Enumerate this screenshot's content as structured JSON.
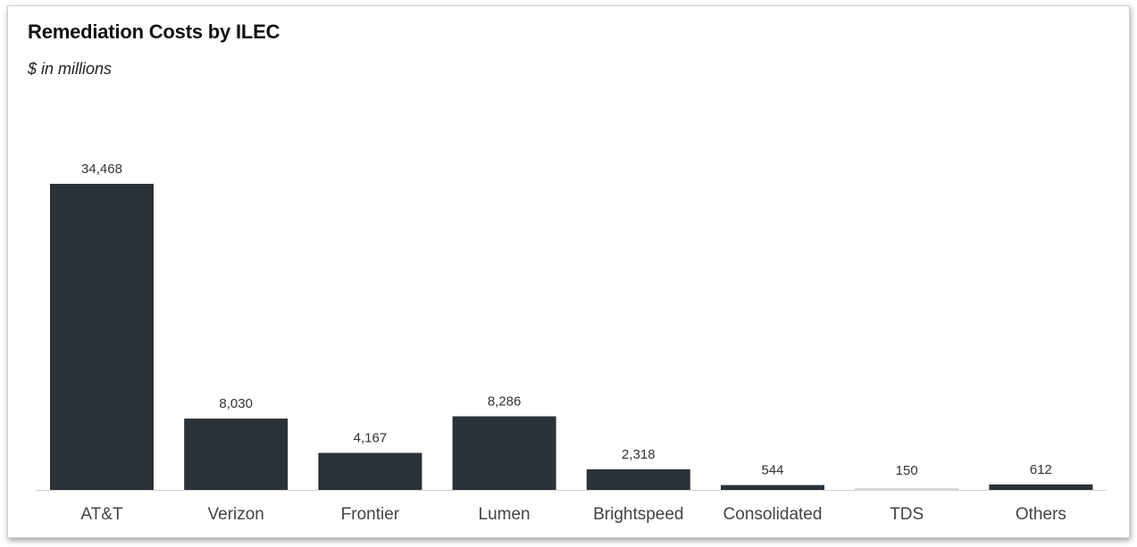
{
  "chart_data": {
    "type": "bar",
    "title": "Remediation Costs by ILEC",
    "subtitle": "$ in millions",
    "xlabel": "",
    "ylabel": "",
    "categories": [
      "AT&T",
      "Verizon",
      "Frontier",
      "Lumen",
      "Brightspeed",
      "Consolidated",
      "TDS",
      "Others"
    ],
    "values": [
      34468,
      8030,
      4167,
      8286,
      2318,
      544,
      150,
      612
    ],
    "value_labels": [
      "34,468",
      "8,030",
      "4,167",
      "8,286",
      "2,318",
      "544",
      "150",
      "612"
    ],
    "ylim": [
      0,
      34468
    ],
    "grid": false,
    "legend": "none",
    "colors": {
      "bar": "#2b3238",
      "bar_small": "#d9dcdf",
      "axis": "#cfd2d5"
    }
  }
}
